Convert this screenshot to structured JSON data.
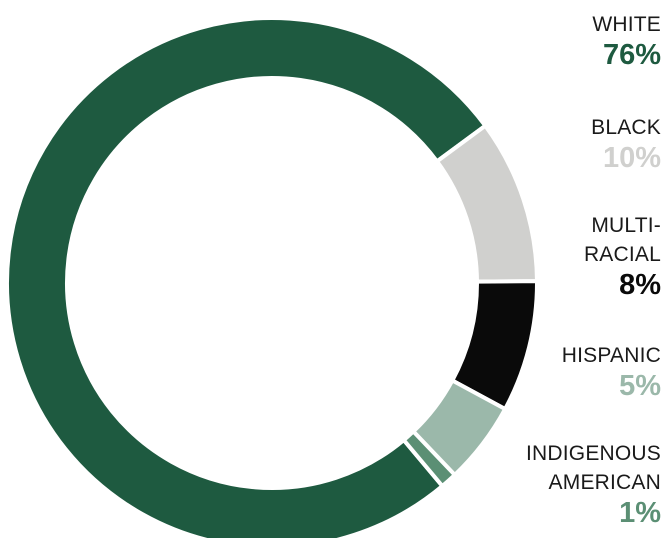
{
  "chart_data": {
    "type": "pie",
    "donut": true,
    "legend_position": "right",
    "slices": [
      {
        "label": "WHITE",
        "label_lines": [
          "WHITE"
        ],
        "value": 76,
        "display": "76%",
        "color": "#1e5a40",
        "text_color": "#1e5a40"
      },
      {
        "label": "BLACK",
        "label_lines": [
          "BLACK"
        ],
        "value": 10,
        "display": "10%",
        "color": "#d0d0ce",
        "text_color": "#d0d0ce"
      },
      {
        "label": "MULTI-RACIAL",
        "label_lines": [
          "MULTI-",
          "RACIAL"
        ],
        "value": 8,
        "display": "8%",
        "color": "#0a0a0a",
        "text_color": "#0a0a0a"
      },
      {
        "label": "HISPANIC",
        "label_lines": [
          "HISPANIC"
        ],
        "value": 5,
        "display": "5%",
        "color": "#9bb8aa",
        "text_color": "#9bb8aa"
      },
      {
        "label": "INDIGENOUS AMERICAN",
        "label_lines": [
          "INDIGENOUS",
          "AMERICAN"
        ],
        "value": 1,
        "display": "1%",
        "color": "#5b8f74",
        "text_color": "#5b8f74"
      }
    ]
  }
}
